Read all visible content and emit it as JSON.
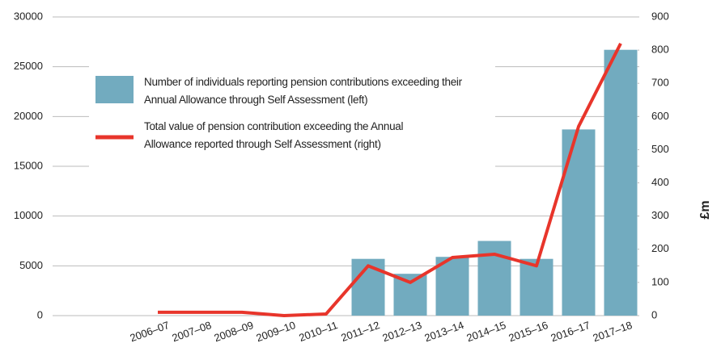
{
  "chart_data": {
    "type": "bar",
    "categories": [
      "2006–07",
      "2007–08",
      "2008–09",
      "2009–10",
      "2010–11",
      "2011–12",
      "2012–13",
      "2013–14",
      "2014–15",
      "2015–16",
      "2016–17",
      "2017–18"
    ],
    "series": [
      {
        "name": "Number of individuals reporting pension contributions exceeding their Annual Allowance through Self Assessment (left)",
        "type": "bar",
        "color": "#72abbf",
        "values": [
          null,
          null,
          null,
          null,
          null,
          5700,
          4200,
          5900,
          7500,
          5700,
          18700,
          26700
        ]
      },
      {
        "name": "Total value of pension contribution exceeding the Annual Allowance reported through Self Assessment (right)",
        "type": "line",
        "axis": "y2",
        "color": "#e8352b",
        "values": [
          10,
          10,
          10,
          0,
          5,
          150,
          100,
          175,
          185,
          150,
          570,
          820
        ]
      }
    ],
    "ylim": [
      0,
      30000
    ],
    "yticks": [
      0,
      5000,
      10000,
      15000,
      20000,
      25000,
      30000
    ],
    "y2lim": [
      0,
      900
    ],
    "y2ticks": [
      0,
      100,
      200,
      300,
      400,
      500,
      600,
      700,
      800,
      900
    ],
    "y2label": "£m",
    "grid": true
  }
}
